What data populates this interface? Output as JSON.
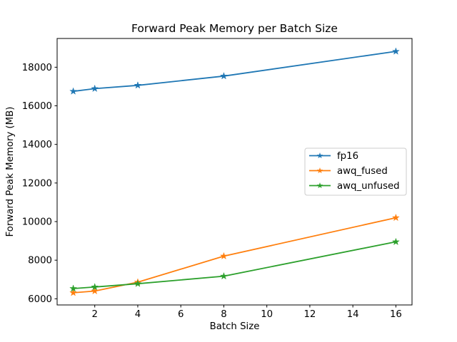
{
  "figure": {
    "background": "#ffffff"
  },
  "chart_data": {
    "type": "line",
    "title": "Forward Peak Memory per Batch Size",
    "xlabel": "Batch Size",
    "ylabel": "Forward Peak Memory (MB)",
    "x": [
      1,
      2,
      4,
      8,
      16
    ],
    "series": [
      {
        "name": "fp16",
        "color": "#1f77b4",
        "values": [
          16750,
          16890,
          17060,
          17540,
          18820
        ]
      },
      {
        "name": "awq_fused",
        "color": "#ff7f0e",
        "values": [
          6310,
          6400,
          6860,
          8210,
          10200
        ]
      },
      {
        "name": "awq_unfused",
        "color": "#2ca02c",
        "values": [
          6530,
          6610,
          6780,
          7170,
          8950
        ]
      }
    ],
    "marker": "star",
    "grid": false,
    "legend_position": "center right",
    "xlim": [
      0.25,
      16.75
    ],
    "ylim": [
      5680,
      19490
    ],
    "xticks": [
      2,
      4,
      6,
      8,
      10,
      12,
      14,
      16
    ],
    "yticks": [
      6000,
      8000,
      10000,
      12000,
      14000,
      16000,
      18000
    ],
    "axis_color": "#000000",
    "legend_border_color": "#cccccc"
  }
}
